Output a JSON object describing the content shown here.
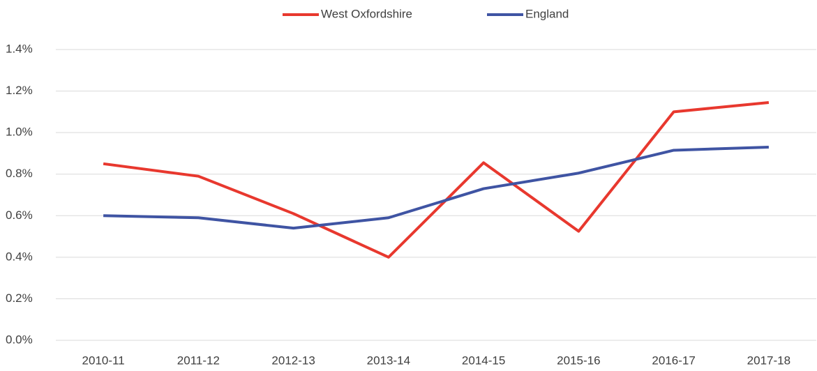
{
  "chart_data": {
    "type": "line",
    "categories": [
      "2010-11",
      "2011-12",
      "2012-13",
      "2013-14",
      "2014-15",
      "2015-16",
      "2016-17",
      "2017-18"
    ],
    "series": [
      {
        "name": "West Oxfordshire",
        "color": "#e8382e",
        "values": [
          0.85,
          0.79,
          0.61,
          0.4,
          0.855,
          0.525,
          1.1,
          1.145
        ]
      },
      {
        "name": "England",
        "color": "#3f54a3",
        "values": [
          0.6,
          0.59,
          0.54,
          0.59,
          0.73,
          0.805,
          0.915,
          0.93
        ]
      }
    ],
    "ylim": [
      0,
      1.4
    ],
    "yticks": [
      {
        "value": 0,
        "label": "0.0%"
      },
      {
        "value": 0.2,
        "label": "0.2%"
      },
      {
        "value": 0.4,
        "label": "0.4%"
      },
      {
        "value": 0.6,
        "label": "0.6%"
      },
      {
        "value": 0.8,
        "label": "0.8%"
      },
      {
        "value": 1.0,
        "label": "1.0%"
      },
      {
        "value": 1.2,
        "label": "1.2%"
      },
      {
        "value": 1.4,
        "label": "1.4%"
      }
    ],
    "grid": true,
    "legend": "top"
  }
}
